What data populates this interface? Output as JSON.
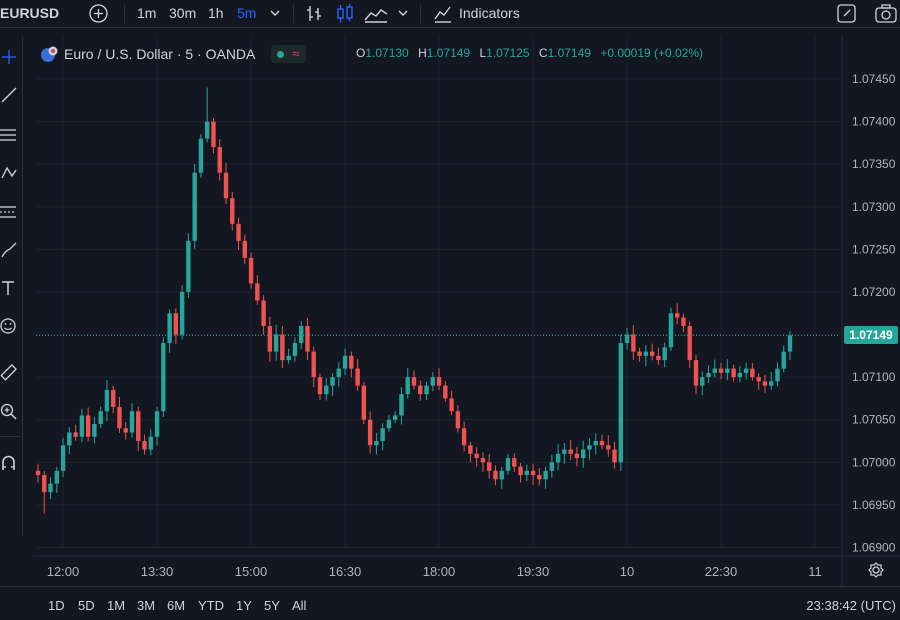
{
  "toolbar": {
    "symbol": "EURUSD",
    "timeframes": [
      "1m",
      "30m",
      "1h",
      "5m"
    ],
    "active_timeframe": "5m",
    "indicators_label": "Indicators"
  },
  "legend": {
    "instrument": "Euro / U.S. Dollar · 5 · OANDA",
    "open_key": "O",
    "open": "1.07130",
    "high_key": "H",
    "high": "1.07149",
    "low_key": "L",
    "low": "1.07125",
    "close_key": "C",
    "close": "1.07149",
    "change": "+0.00019 (+0.02%)"
  },
  "bottom": {
    "ranges": [
      "1D",
      "5D",
      "1M",
      "3M",
      "6M",
      "YTD",
      "1Y",
      "5Y",
      "All"
    ],
    "clock": "23:38:42 (UTC)"
  },
  "colors": {
    "up": "#26a69a",
    "down": "#ef5350",
    "background": "#131722",
    "grid": "#1e222d",
    "accent": "#2962ff"
  },
  "chart_data": {
    "type": "candlestick",
    "y_tick_labels": [
      "1.07450",
      "1.07400",
      "1.07350",
      "1.07300",
      "1.07250",
      "1.07200",
      "1.07150",
      "1.07100",
      "1.07050",
      "1.07000",
      "1.06950",
      "1.06900"
    ],
    "ylim": [
      1.0689,
      1.0747
    ],
    "x_tick_labels": [
      "12:00",
      "13:30",
      "15:00",
      "16:30",
      "18:00",
      "19:30",
      "10",
      "22:30",
      "11"
    ],
    "current_price": "1.07149",
    "grid": true,
    "closes": [
      1.06985,
      1.06965,
      1.06975,
      1.0699,
      1.0702,
      1.07035,
      1.0703,
      1.07055,
      1.0703,
      1.07045,
      1.0706,
      1.07085,
      1.07065,
      1.0704,
      1.07035,
      1.0706,
      1.07025,
      1.07015,
      1.0703,
      1.0706,
      1.0714,
      1.07175,
      1.0715,
      1.072,
      1.0726,
      1.0734,
      1.0738,
      1.074,
      1.0737,
      1.0734,
      1.0731,
      1.0728,
      1.0726,
      1.0724,
      1.0721,
      1.0719,
      1.0716,
      1.0713,
      1.0715,
      1.0712,
      1.07125,
      1.0714,
      1.0716,
      1.0713,
      1.071,
      1.0708,
      1.0709,
      1.071,
      1.0711,
      1.07125,
      1.0711,
      1.0709,
      1.0705,
      1.0702,
      1.07025,
      1.0704,
      1.0705,
      1.07055,
      1.0708,
      1.071,
      1.0709,
      1.0708,
      1.0709,
      1.071,
      1.0709,
      1.07075,
      1.0706,
      1.0704,
      1.0702,
      1.0701,
      1.07005,
      1.07,
      1.0699,
      1.0698,
      1.0699,
      1.07005,
      1.06995,
      1.06985,
      1.0699,
      1.06985,
      1.0698,
      1.0699,
      1.07,
      1.0701,
      1.07015,
      1.0701,
      1.07005,
      1.07015,
      1.0702,
      1.07025,
      1.0702,
      1.07015,
      1.07,
      1.0714,
      1.0715,
      1.0713,
      1.07125,
      1.0713,
      1.07125,
      1.0712,
      1.07135,
      1.07175,
      1.0717,
      1.0716,
      1.0712,
      1.0709,
      1.071,
      1.07105,
      1.0711,
      1.07105,
      1.0711,
      1.071,
      1.07105,
      1.0711,
      1.071,
      1.07095,
      1.0709,
      1.07095,
      1.0711,
      1.0713,
      1.07149
    ],
    "high": 1.0744,
    "low": 1.0694
  }
}
